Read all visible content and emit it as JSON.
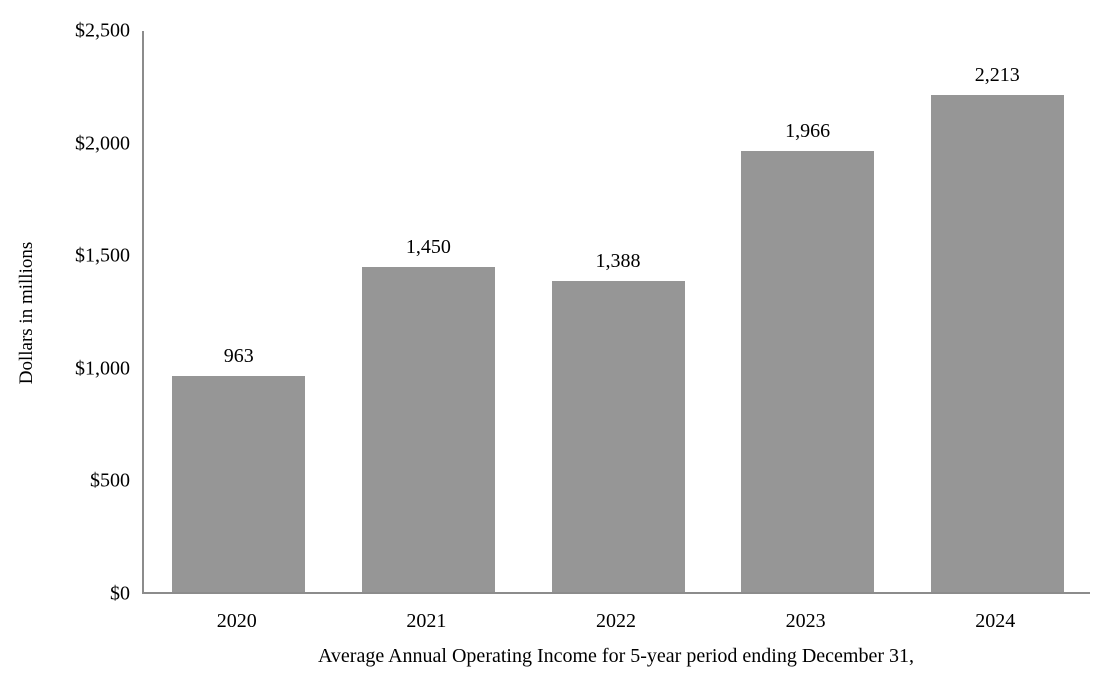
{
  "chart_data": {
    "type": "bar",
    "categories": [
      "2020",
      "2021",
      "2022",
      "2023",
      "2024"
    ],
    "values": [
      963,
      1450,
      1388,
      1966,
      2213
    ],
    "value_labels": [
      "963",
      "1,450",
      "1,388",
      "1,966",
      "2,213"
    ],
    "xlabel": "Average Annual Operating Income for 5-year period ending December 31,",
    "ylabel": "Dollars in millions",
    "ylim": [
      0,
      2500
    ],
    "ytick_interval": 500,
    "ytick_labels": [
      "$0",
      "$500",
      "$1,000",
      "$1,500",
      "$2,000",
      "$2,500"
    ],
    "grid": false,
    "legend": "none",
    "bar_color": "#969696",
    "axis_color": "#8c8c8c",
    "text_color": "#000000"
  }
}
